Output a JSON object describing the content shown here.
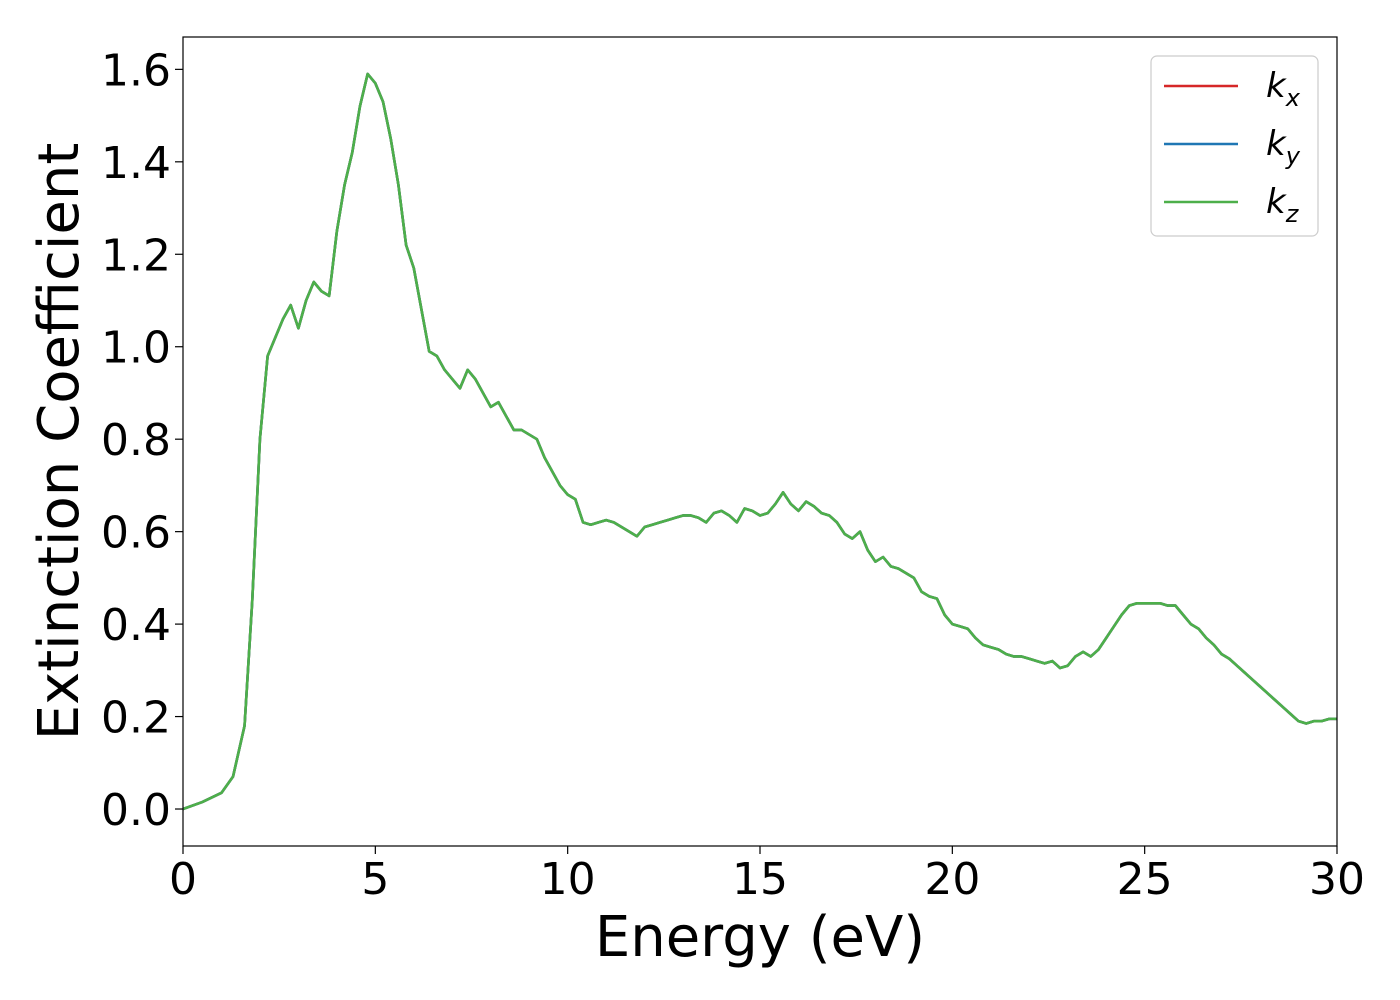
{
  "chart_data": {
    "type": "line",
    "title": "",
    "xlabel": "Energy (eV)",
    "ylabel": "Extinction Coefficient",
    "xlim": [
      0,
      30
    ],
    "ylim": [
      -0.08,
      1.67
    ],
    "xticks": [
      0,
      5,
      10,
      15,
      20,
      25,
      30
    ],
    "xtick_labels": [
      "0",
      "5",
      "10",
      "15",
      "20",
      "25",
      "30"
    ],
    "yticks": [
      0.0,
      0.2,
      0.4,
      0.6,
      0.8,
      1.0,
      1.2,
      1.4,
      1.6
    ],
    "ytick_labels": [
      "0.0",
      "0.2",
      "0.4",
      "0.6",
      "0.8",
      "1.0",
      "1.2",
      "1.4",
      "1.6"
    ],
    "grid": false,
    "legend_position": "top-right",
    "x": [
      0,
      0.5,
      1.0,
      1.3,
      1.6,
      1.8,
      2.0,
      2.2,
      2.4,
      2.6,
      2.8,
      3.0,
      3.2,
      3.4,
      3.6,
      3.8,
      4.0,
      4.2,
      4.4,
      4.6,
      4.8,
      5.0,
      5.2,
      5.4,
      5.6,
      5.8,
      6.0,
      6.2,
      6.4,
      6.6,
      6.8,
      7.0,
      7.2,
      7.4,
      7.6,
      7.8,
      8.0,
      8.2,
      8.4,
      8.6,
      8.8,
      9.0,
      9.2,
      9.4,
      9.6,
      9.8,
      10.0,
      10.2,
      10.4,
      10.6,
      10.8,
      11.0,
      11.2,
      11.4,
      11.6,
      11.8,
      12.0,
      12.2,
      12.4,
      12.6,
      12.8,
      13.0,
      13.2,
      13.4,
      13.6,
      13.8,
      14.0,
      14.2,
      14.4,
      14.6,
      14.8,
      15.0,
      15.2,
      15.4,
      15.6,
      15.8,
      16.0,
      16.2,
      16.4,
      16.6,
      16.8,
      17.0,
      17.2,
      17.4,
      17.6,
      17.8,
      18.0,
      18.2,
      18.4,
      18.6,
      18.8,
      19.0,
      19.2,
      19.4,
      19.6,
      19.8,
      20.0,
      20.2,
      20.4,
      20.6,
      20.8,
      21.0,
      21.2,
      21.4,
      21.6,
      21.8,
      22.0,
      22.2,
      22.4,
      22.6,
      22.8,
      23.0,
      23.2,
      23.4,
      23.6,
      23.8,
      24.0,
      24.2,
      24.4,
      24.6,
      24.8,
      25.0,
      25.2,
      25.4,
      25.6,
      25.8,
      26.0,
      26.2,
      26.4,
      26.6,
      26.8,
      27.0,
      27.2,
      27.4,
      27.6,
      27.8,
      28.0,
      28.2,
      28.4,
      28.6,
      28.8,
      29.0,
      29.2,
      29.4,
      29.6,
      29.8,
      30.0
    ],
    "series": [
      {
        "name": "k_x",
        "color": "#d62728",
        "values": [
          0.0,
          0.015,
          0.035,
          0.07,
          0.18,
          0.45,
          0.8,
          0.98,
          1.02,
          1.06,
          1.09,
          1.04,
          1.1,
          1.14,
          1.12,
          1.11,
          1.25,
          1.35,
          1.42,
          1.52,
          1.59,
          1.57,
          1.53,
          1.45,
          1.35,
          1.22,
          1.17,
          1.08,
          0.99,
          0.98,
          0.95,
          0.93,
          0.91,
          0.95,
          0.93,
          0.9,
          0.87,
          0.88,
          0.85,
          0.82,
          0.82,
          0.81,
          0.8,
          0.76,
          0.73,
          0.7,
          0.68,
          0.67,
          0.62,
          0.615,
          0.62,
          0.625,
          0.62,
          0.61,
          0.6,
          0.59,
          0.61,
          0.615,
          0.62,
          0.625,
          0.63,
          0.635,
          0.635,
          0.63,
          0.62,
          0.64,
          0.645,
          0.635,
          0.62,
          0.65,
          0.645,
          0.635,
          0.64,
          0.66,
          0.685,
          0.66,
          0.645,
          0.665,
          0.655,
          0.64,
          0.635,
          0.62,
          0.595,
          0.585,
          0.6,
          0.56,
          0.535,
          0.545,
          0.525,
          0.52,
          0.51,
          0.5,
          0.47,
          0.46,
          0.455,
          0.42,
          0.4,
          0.395,
          0.39,
          0.37,
          0.355,
          0.35,
          0.345,
          0.335,
          0.33,
          0.33,
          0.325,
          0.32,
          0.315,
          0.32,
          0.305,
          0.31,
          0.33,
          0.34,
          0.33,
          0.345,
          0.37,
          0.395,
          0.42,
          0.44,
          0.445,
          0.445,
          0.445,
          0.445,
          0.44,
          0.44,
          0.42,
          0.4,
          0.39,
          0.37,
          0.355,
          0.335,
          0.325,
          0.31,
          0.295,
          0.28,
          0.265,
          0.25,
          0.235,
          0.22,
          0.205,
          0.19,
          0.185,
          0.19,
          0.19,
          0.195,
          0.195
        ]
      },
      {
        "name": "k_y",
        "color": "#1f77b4",
        "values": [
          0.0,
          0.015,
          0.035,
          0.07,
          0.18,
          0.45,
          0.8,
          0.98,
          1.02,
          1.06,
          1.09,
          1.04,
          1.1,
          1.14,
          1.12,
          1.11,
          1.25,
          1.35,
          1.42,
          1.52,
          1.59,
          1.57,
          1.53,
          1.45,
          1.35,
          1.22,
          1.17,
          1.08,
          0.99,
          0.98,
          0.95,
          0.93,
          0.91,
          0.95,
          0.93,
          0.9,
          0.87,
          0.88,
          0.85,
          0.82,
          0.82,
          0.81,
          0.8,
          0.76,
          0.73,
          0.7,
          0.68,
          0.67,
          0.62,
          0.615,
          0.62,
          0.625,
          0.62,
          0.61,
          0.6,
          0.59,
          0.61,
          0.615,
          0.62,
          0.625,
          0.63,
          0.635,
          0.635,
          0.63,
          0.62,
          0.64,
          0.645,
          0.635,
          0.62,
          0.65,
          0.645,
          0.635,
          0.64,
          0.66,
          0.685,
          0.66,
          0.645,
          0.665,
          0.655,
          0.64,
          0.635,
          0.62,
          0.595,
          0.585,
          0.6,
          0.56,
          0.535,
          0.545,
          0.525,
          0.52,
          0.51,
          0.5,
          0.47,
          0.46,
          0.455,
          0.42,
          0.4,
          0.395,
          0.39,
          0.37,
          0.355,
          0.35,
          0.345,
          0.335,
          0.33,
          0.33,
          0.325,
          0.32,
          0.315,
          0.32,
          0.305,
          0.31,
          0.33,
          0.34,
          0.33,
          0.345,
          0.37,
          0.395,
          0.42,
          0.44,
          0.445,
          0.445,
          0.445,
          0.445,
          0.44,
          0.44,
          0.42,
          0.4,
          0.39,
          0.37,
          0.355,
          0.335,
          0.325,
          0.31,
          0.295,
          0.28,
          0.265,
          0.25,
          0.235,
          0.22,
          0.205,
          0.19,
          0.185,
          0.19,
          0.19,
          0.195,
          0.195
        ]
      },
      {
        "name": "k_z",
        "color": "#4daf4a",
        "values": [
          0.0,
          0.015,
          0.035,
          0.07,
          0.18,
          0.45,
          0.8,
          0.98,
          1.02,
          1.06,
          1.09,
          1.04,
          1.1,
          1.14,
          1.12,
          1.11,
          1.25,
          1.35,
          1.42,
          1.52,
          1.59,
          1.57,
          1.53,
          1.45,
          1.35,
          1.22,
          1.17,
          1.08,
          0.99,
          0.98,
          0.95,
          0.93,
          0.91,
          0.95,
          0.93,
          0.9,
          0.87,
          0.88,
          0.85,
          0.82,
          0.82,
          0.81,
          0.8,
          0.76,
          0.73,
          0.7,
          0.68,
          0.67,
          0.62,
          0.615,
          0.62,
          0.625,
          0.62,
          0.61,
          0.6,
          0.59,
          0.61,
          0.615,
          0.62,
          0.625,
          0.63,
          0.635,
          0.635,
          0.63,
          0.62,
          0.64,
          0.645,
          0.635,
          0.62,
          0.65,
          0.645,
          0.635,
          0.64,
          0.66,
          0.685,
          0.66,
          0.645,
          0.665,
          0.655,
          0.64,
          0.635,
          0.62,
          0.595,
          0.585,
          0.6,
          0.56,
          0.535,
          0.545,
          0.525,
          0.52,
          0.51,
          0.5,
          0.47,
          0.46,
          0.455,
          0.42,
          0.4,
          0.395,
          0.39,
          0.37,
          0.355,
          0.35,
          0.345,
          0.335,
          0.33,
          0.33,
          0.325,
          0.32,
          0.315,
          0.32,
          0.305,
          0.31,
          0.33,
          0.34,
          0.33,
          0.345,
          0.37,
          0.395,
          0.42,
          0.44,
          0.445,
          0.445,
          0.445,
          0.445,
          0.44,
          0.44,
          0.42,
          0.4,
          0.39,
          0.37,
          0.355,
          0.335,
          0.325,
          0.31,
          0.295,
          0.28,
          0.265,
          0.25,
          0.235,
          0.22,
          0.205,
          0.19,
          0.185,
          0.19,
          0.19,
          0.195,
          0.195
        ]
      }
    ],
    "legend": [
      {
        "base": "k",
        "sub": "x",
        "color": "#d62728"
      },
      {
        "base": "k",
        "sub": "y",
        "color": "#1f77b4"
      },
      {
        "base": "k",
        "sub": "z",
        "color": "#4daf4a"
      }
    ]
  }
}
